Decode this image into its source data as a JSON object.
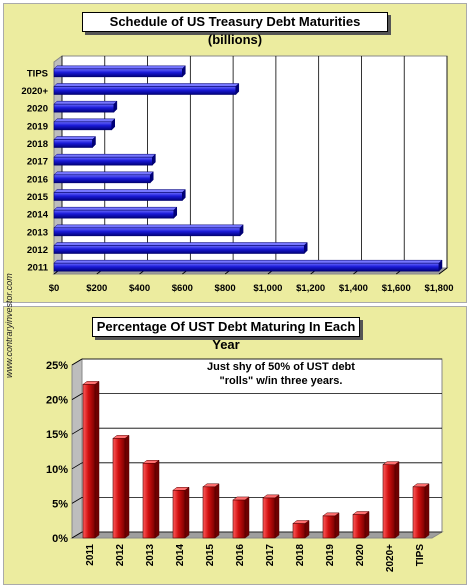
{
  "watermark": "www.contraryinvestor.com",
  "annotation": [
    "Just shy of 50% of UST debt",
    "\"rolls\" w/in three years."
  ],
  "chart_data": [
    {
      "type": "bar",
      "orientation": "horizontal",
      "title": "Schedule of US Treasury Debt Maturities (billions)",
      "categories": [
        "TIPS",
        "2020+",
        "2020",
        "2019",
        "2018",
        "2017",
        "2016",
        "2015",
        "2014",
        "2013",
        "2012",
        "2011"
      ],
      "values": [
        600,
        850,
        280,
        270,
        180,
        460,
        450,
        600,
        560,
        870,
        1170,
        1800
      ],
      "xlim": [
        0,
        1800
      ],
      "xticks": [
        "$0",
        "$200",
        "$400",
        "$600",
        "$800",
        "$1,000",
        "$1,200",
        "$1,400",
        "$1,600",
        "$1,800"
      ],
      "grid": true,
      "color": "#1a1ad8"
    },
    {
      "type": "bar",
      "title": "Percentage Of UST Debt Maturing In Each Year",
      "categories": [
        "2011",
        "2012",
        "2013",
        "2014",
        "2015",
        "2016",
        "2017",
        "2018",
        "2019",
        "2020",
        "2020+",
        "TIPS"
      ],
      "values": [
        22.2,
        14.4,
        10.8,
        6.9,
        7.4,
        5.5,
        5.8,
        2.1,
        3.2,
        3.4,
        10.6,
        7.4
      ],
      "ylim": [
        0,
        25
      ],
      "yticks": [
        "0%",
        "5%",
        "10%",
        "15%",
        "20%",
        "25%"
      ],
      "grid": true,
      "color": "#d01010"
    }
  ]
}
